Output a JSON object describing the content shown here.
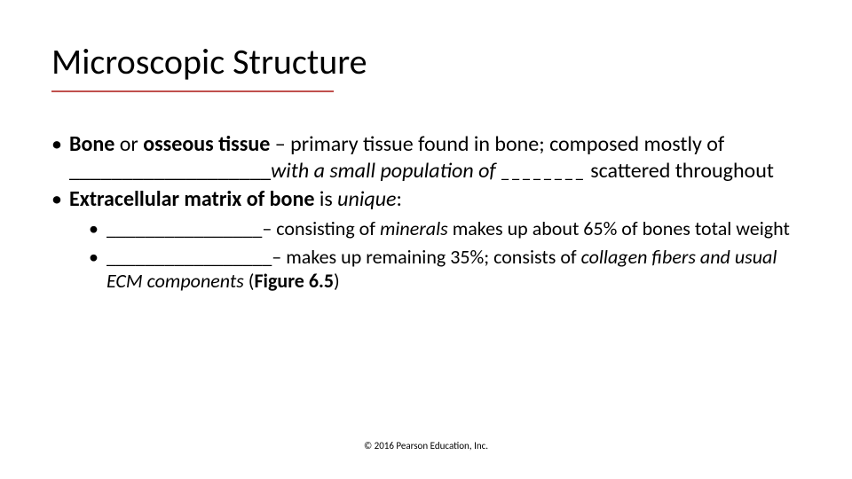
{
  "title": "Microscopic Structure",
  "title_underline_color": "#c0504d",
  "bullets": {
    "b1": {
      "bold1": "Bone",
      "plain1": " or ",
      "bold2": "osseous tissue",
      "plain2": " – primary tissue found in bone; composed mostly of ___________________",
      "italic1": "with a small population of ________",
      "plain3": " scattered throughout"
    },
    "b2": {
      "bold1": "Extracellular matrix of bone",
      "plain1": " is ",
      "italic1": "unique",
      "plain2": ":"
    },
    "s1": {
      "plain1": "________________– consisting of ",
      "italic1": "minerals ",
      "plain2": "makes up about 65% of bones total weight"
    },
    "s2": {
      "plain1": "_________________– makes up remaining 35%; consists of ",
      "italic1": "collagen fibers and usual ECM components",
      "plain2": " (",
      "bold1": "Figure 6.5",
      "plain3": ")"
    }
  },
  "footer": "© 2016 Pearson Education, Inc."
}
